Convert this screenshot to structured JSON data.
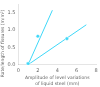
{
  "chart_data": {
    "type": "scatter",
    "xlabel": "Amplitude of level variations\nof liquid steel (mm)",
    "ylabel": "Rate/length of fissures (m/m²)",
    "xlim": [
      0,
      8
    ],
    "ylim": [
      0,
      1.75
    ],
    "xticks": [
      0,
      2,
      4,
      6,
      8
    ],
    "yticks": [
      {
        "value": 0.0,
        "label": "0.0"
      },
      0.5,
      {
        "value": 1.0,
        "label": "1.0"
      },
      1.5
    ],
    "grid": false,
    "series": [
      {
        "type": "line",
        "color": "#40d8f8",
        "x": [
          1.0,
          3.5
        ],
        "values": [
          0.0,
          1.57
        ]
      },
      {
        "type": "scatter",
        "color": "#40d8f8",
        "x": [
          1.0,
          2.0
        ],
        "values": [
          0.03,
          0.82
        ]
      },
      {
        "type": "line",
        "color": "#40d8f8",
        "x": [
          1.0,
          7.0
        ],
        "values": [
          0.0,
          1.15
        ]
      },
      {
        "type": "scatter",
        "color": "#40d8f8",
        "x": [
          1.0,
          5.0
        ],
        "values": [
          0.03,
          0.75
        ]
      }
    ]
  }
}
